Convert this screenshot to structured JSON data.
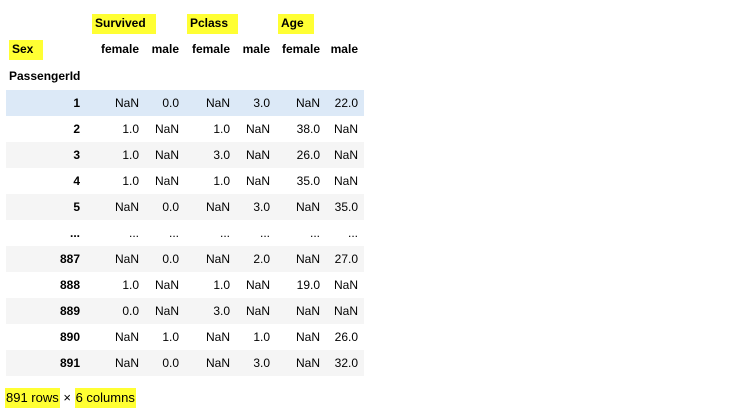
{
  "header": {
    "groups": [
      "Survived",
      "Pclass",
      "Age"
    ],
    "columns_level_name": "Sex",
    "sub_columns": [
      "female",
      "male",
      "female",
      "male",
      "female",
      "male"
    ],
    "index_name": "PassengerId"
  },
  "rows": [
    {
      "id": "1",
      "values": [
        "NaN",
        "0.0",
        "NaN",
        "3.0",
        "NaN",
        "22.0"
      ]
    },
    {
      "id": "2",
      "values": [
        "1.0",
        "NaN",
        "1.0",
        "NaN",
        "38.0",
        "NaN"
      ]
    },
    {
      "id": "3",
      "values": [
        "1.0",
        "NaN",
        "3.0",
        "NaN",
        "26.0",
        "NaN"
      ]
    },
    {
      "id": "4",
      "values": [
        "1.0",
        "NaN",
        "1.0",
        "NaN",
        "35.0",
        "NaN"
      ]
    },
    {
      "id": "5",
      "values": [
        "NaN",
        "0.0",
        "NaN",
        "3.0",
        "NaN",
        "35.0"
      ]
    },
    {
      "id": "...",
      "values": [
        "...",
        "...",
        "...",
        "...",
        "...",
        "..."
      ]
    },
    {
      "id": "887",
      "values": [
        "NaN",
        "0.0",
        "NaN",
        "2.0",
        "NaN",
        "27.0"
      ]
    },
    {
      "id": "888",
      "values": [
        "1.0",
        "NaN",
        "1.0",
        "NaN",
        "19.0",
        "NaN"
      ]
    },
    {
      "id": "889",
      "values": [
        "0.0",
        "NaN",
        "3.0",
        "NaN",
        "NaN",
        "NaN"
      ]
    },
    {
      "id": "890",
      "values": [
        "NaN",
        "1.0",
        "NaN",
        "1.0",
        "NaN",
        "26.0"
      ]
    },
    {
      "id": "891",
      "values": [
        "NaN",
        "0.0",
        "NaN",
        "3.0",
        "NaN",
        "32.0"
      ]
    }
  ],
  "footer": {
    "rows_text": "891 rows",
    "times": "×",
    "columns_text": "6 columns"
  },
  "colors": {
    "highlight": "#ffff33",
    "selected_row": "#dce9f7",
    "stripe": "#f5f5f5"
  }
}
